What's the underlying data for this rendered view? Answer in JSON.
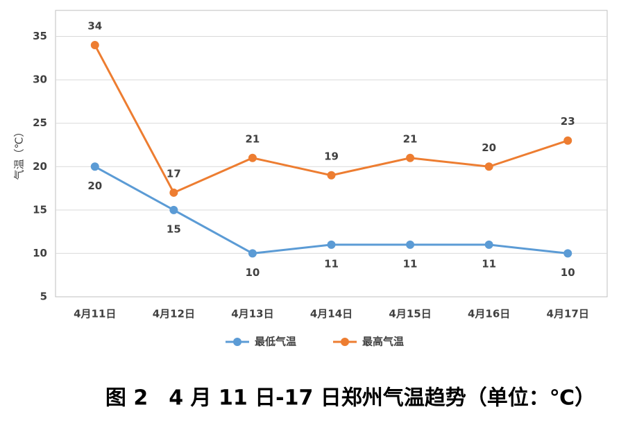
{
  "chart_data": {
    "type": "line",
    "title": "图 2　4 月 11 日-17 日郑州气温趋势（单位：℃）",
    "y_label": "气温（℃）",
    "categories": [
      "4月11日",
      "4月12日",
      "4月13日",
      "4月14日",
      "4月15日",
      "4月16日",
      "4月17日"
    ],
    "series": [
      {
        "name": "最低气温",
        "color": "#5b9bd5",
        "values": [
          20,
          15,
          10,
          11,
          11,
          11,
          10
        ]
      },
      {
        "name": "最高气温",
        "color": "#ed7d31",
        "values": [
          34,
          17,
          21,
          19,
          21,
          20,
          23
        ]
      }
    ],
    "ylim": [
      5,
      38
    ],
    "yticks": [
      5,
      10,
      15,
      20,
      25,
      30,
      35
    ],
    "grid": true,
    "legend": "bottom"
  }
}
